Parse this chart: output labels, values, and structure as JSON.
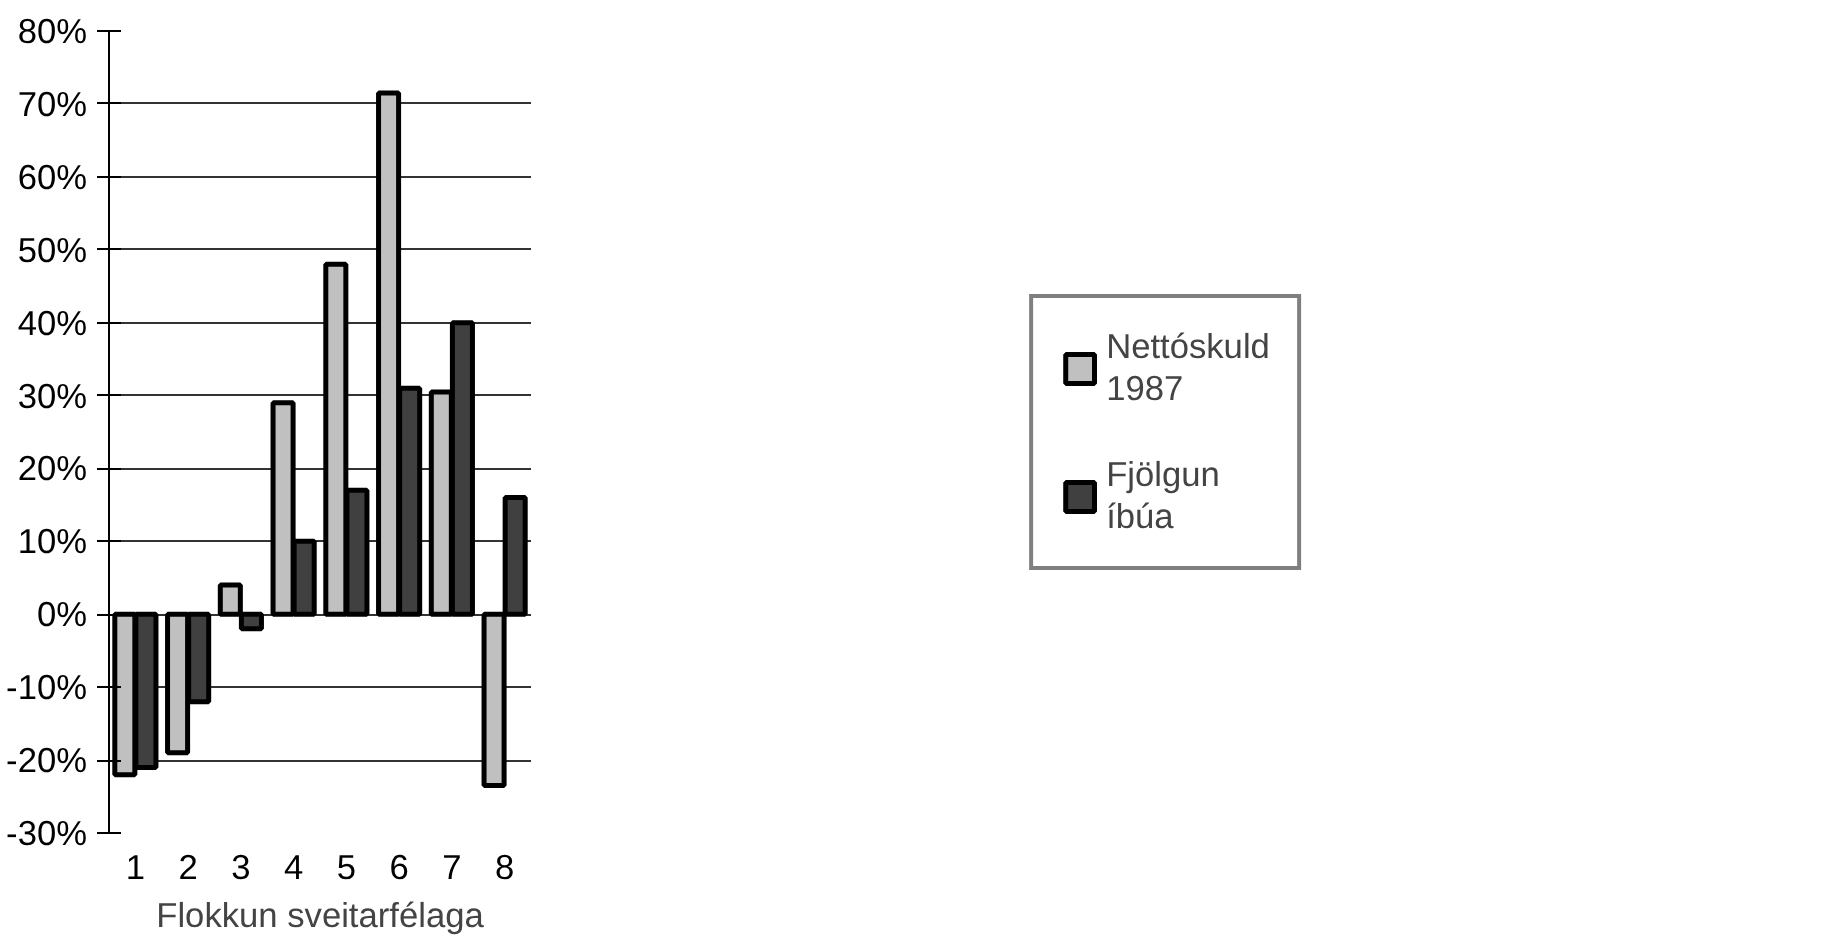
{
  "chart_data": {
    "type": "bar",
    "xlabel": "Flokkun sveitarfélaga",
    "categories": [
      "1",
      "2",
      "3",
      "4",
      "5",
      "6",
      "7",
      "8"
    ],
    "series": [
      {
        "name": "Nettóskuld 1987",
        "color": "#c0c0c0",
        "values": [
          -22,
          -19,
          4,
          29,
          48,
          71.5,
          30.5,
          -23.5
        ]
      },
      {
        "name": "Fjölgun íbúa",
        "color": "#404040",
        "values": [
          -21,
          -12,
          -2,
          10,
          17,
          31,
          40,
          16
        ]
      }
    ],
    "ylim": [
      -30,
      80
    ],
    "yticks": [
      {
        "value": -30,
        "label": "-30%"
      },
      {
        "value": -20,
        "label": "-20%"
      },
      {
        "value": -10,
        "label": "-10%"
      },
      {
        "value": 0,
        "label": "0%"
      },
      {
        "value": 10,
        "label": "10%"
      },
      {
        "value": 20,
        "label": "20%"
      },
      {
        "value": 30,
        "label": "30%"
      },
      {
        "value": 40,
        "label": "40%"
      },
      {
        "value": 50,
        "label": "50%"
      },
      {
        "value": 60,
        "label": "60%"
      },
      {
        "value": 70,
        "label": "70%"
      },
      {
        "value": 80,
        "label": "80%"
      }
    ],
    "grid": "y",
    "legend": "right"
  }
}
